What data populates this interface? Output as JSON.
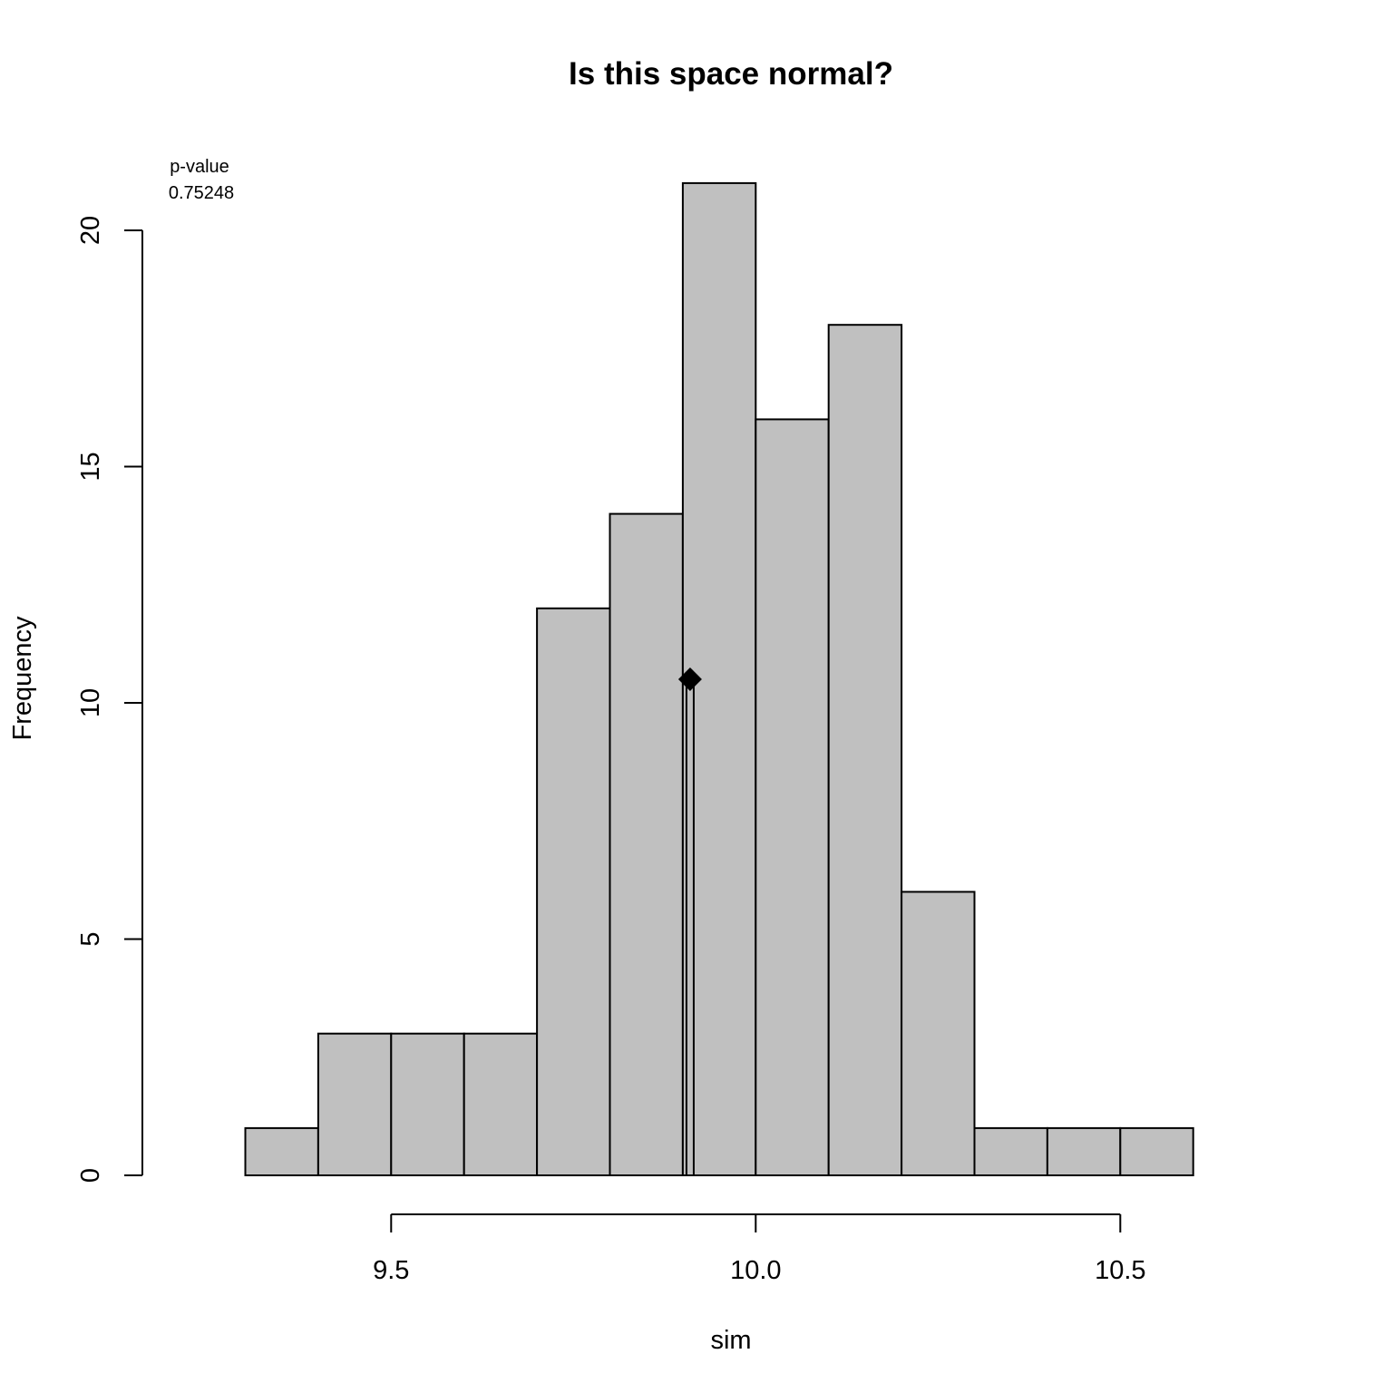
{
  "chart_data": {
    "type": "histogram",
    "title": "Is this space normal?",
    "xlabel": "sim",
    "ylabel": "Frequency",
    "bin_width": 0.1,
    "bins": [
      {
        "x0": 9.3,
        "x1": 9.4,
        "count": 1
      },
      {
        "x0": 9.4,
        "x1": 9.5,
        "count": 3
      },
      {
        "x0": 9.5,
        "x1": 9.6,
        "count": 3
      },
      {
        "x0": 9.6,
        "x1": 9.7,
        "count": 3
      },
      {
        "x0": 9.7,
        "x1": 9.8,
        "count": 12
      },
      {
        "x0": 9.8,
        "x1": 9.9,
        "count": 14
      },
      {
        "x0": 9.9,
        "x1": 10.0,
        "count": 21
      },
      {
        "x0": 10.0,
        "x1": 10.1,
        "count": 16
      },
      {
        "x0": 10.1,
        "x1": 10.2,
        "count": 18
      },
      {
        "x0": 10.2,
        "x1": 10.3,
        "count": 6
      },
      {
        "x0": 10.3,
        "x1": 10.4,
        "count": 1
      },
      {
        "x0": 10.4,
        "x1": 10.5,
        "count": 1
      },
      {
        "x0": 10.5,
        "x1": 10.6,
        "count": 1
      }
    ],
    "x_ticks": [
      {
        "value": 9.5,
        "label": "9.5"
      },
      {
        "value": 10.0,
        "label": "10.0"
      },
      {
        "value": 10.5,
        "label": "10.5"
      }
    ],
    "y_ticks": [
      {
        "value": 0,
        "label": "0"
      },
      {
        "value": 5,
        "label": "5"
      },
      {
        "value": 10,
        "label": "10"
      },
      {
        "value": 15,
        "label": "15"
      },
      {
        "value": 20,
        "label": "20"
      }
    ],
    "observed": {
      "x": 9.91,
      "y": 10.5
    },
    "annotation": {
      "line1": "p-value",
      "line2": "0.75248"
    },
    "colors": {
      "bar_fill": "#c0c0c0",
      "stroke": "#000000",
      "background": "#ffffff"
    }
  }
}
